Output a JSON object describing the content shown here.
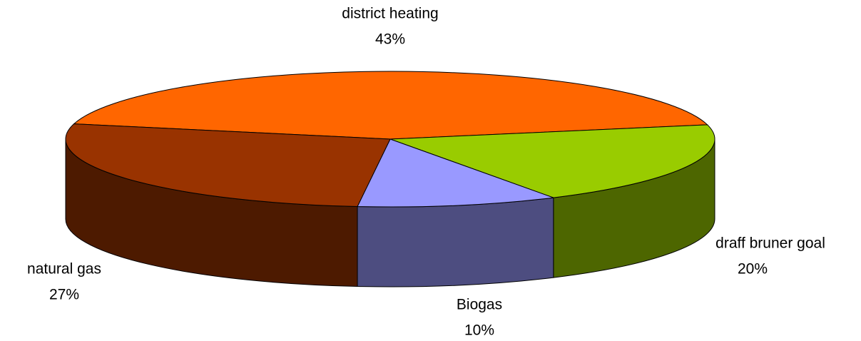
{
  "chart_data": {
    "type": "pie3d",
    "categories": [
      "district heating",
      "draff bruner goal",
      "Biogas",
      "natural gas"
    ],
    "values": [
      43,
      20,
      10,
      27
    ],
    "value_labels": [
      "43%",
      "20%",
      "10%",
      "27%"
    ],
    "colors": [
      "#ff6600",
      "#99cc00",
      "#9999ff",
      "#993300"
    ]
  }
}
